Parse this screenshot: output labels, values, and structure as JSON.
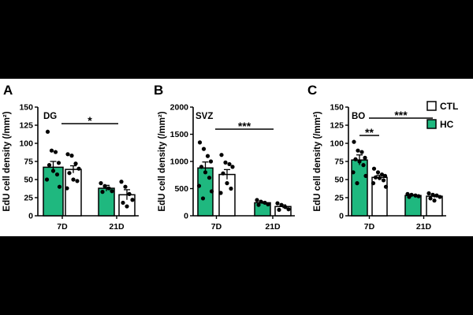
{
  "colors": {
    "hc": "#1fb87f",
    "ctl": "#ffffff",
    "stroke": "#000000"
  },
  "legend": [
    {
      "label": "CTL",
      "color": "#ffffff"
    },
    {
      "label": "HC",
      "color": "#1fb87f"
    }
  ],
  "chart_data": [
    {
      "panel": "A",
      "type": "bar",
      "region": "DG",
      "ylabel": "EdU cell density (/mm²)",
      "ylim": [
        0,
        150
      ],
      "yticks": [
        "0",
        "25",
        "50",
        "75",
        "100",
        "125",
        "150"
      ],
      "categories": [
        "7D",
        "21D"
      ],
      "series": [
        {
          "name": "HC",
          "values": [
            67,
            38
          ],
          "errors": [
            8,
            4
          ],
          "points": [
            [
              116,
              90,
              88,
              73,
              70,
              62,
              57,
              50,
              40
            ],
            [
              45,
              41,
              38,
              34,
              33
            ]
          ]
        },
        {
          "name": "CTL",
          "values": [
            64,
            29
          ],
          "errors": [
            5,
            7
          ],
          "points": [
            [
              85,
              83,
              72,
              65,
              59,
              50,
              48,
              38
            ],
            [
              47,
              40,
              30,
              22,
              18,
              13
            ]
          ]
        }
      ],
      "significance": [
        {
          "label": "*"
        }
      ]
    },
    {
      "panel": "B",
      "type": "bar",
      "region": "SVZ",
      "ylabel": "EdU cell density (/mm²)",
      "ylim": [
        0,
        2000
      ],
      "yticks": [
        "0",
        "500",
        "1000",
        "1500",
        "2000"
      ],
      "categories": [
        "7D",
        "21D"
      ],
      "series": [
        {
          "name": "HC",
          "values": [
            880,
            240
          ],
          "errors": [
            110,
            20
          ],
          "points": [
            [
              1350,
              1230,
              1100,
              1000,
              900,
              800,
              700,
              550,
              450,
              320
            ],
            [
              290,
              260,
              240,
              210,
              200
            ]
          ]
        },
        {
          "name": "CTL",
          "values": [
            760,
            170
          ],
          "errors": [
            90,
            30
          ],
          "points": [
            [
              1120,
              980,
              950,
              900,
              780,
              600,
              500,
              420
            ],
            [
              230,
              200,
              160,
              120,
              110
            ]
          ]
        }
      ],
      "significance": [
        {
          "label": "***"
        }
      ]
    },
    {
      "panel": "C",
      "type": "bar",
      "region": "BO",
      "ylabel": "EdU cell density (/mm²)",
      "ylim": [
        0,
        150
      ],
      "yticks": [
        "0",
        "25",
        "50",
        "75",
        "100",
        "125",
        "150"
      ],
      "categories": [
        "7D",
        "21D"
      ],
      "series": [
        {
          "name": "HC",
          "values": [
            77,
            28
          ],
          "errors": [
            7,
            1
          ],
          "points": [
            [
              102,
              90,
              88,
              80,
              78,
              75,
              70,
              60,
              55,
              45
            ],
            [
              30,
              29,
              28,
              27,
              26
            ]
          ]
        },
        {
          "name": "CTL",
          "values": [
            53,
            27
          ],
          "errors": [
            3,
            2
          ],
          "points": [
            [
              65,
              60,
              57,
              55,
              53,
              52,
              49,
              45,
              40
            ],
            [
              31,
              29,
              28,
              26,
              24,
              21
            ]
          ]
        }
      ],
      "significance": [
        {
          "label": "**"
        },
        {
          "label": "***"
        }
      ]
    }
  ]
}
